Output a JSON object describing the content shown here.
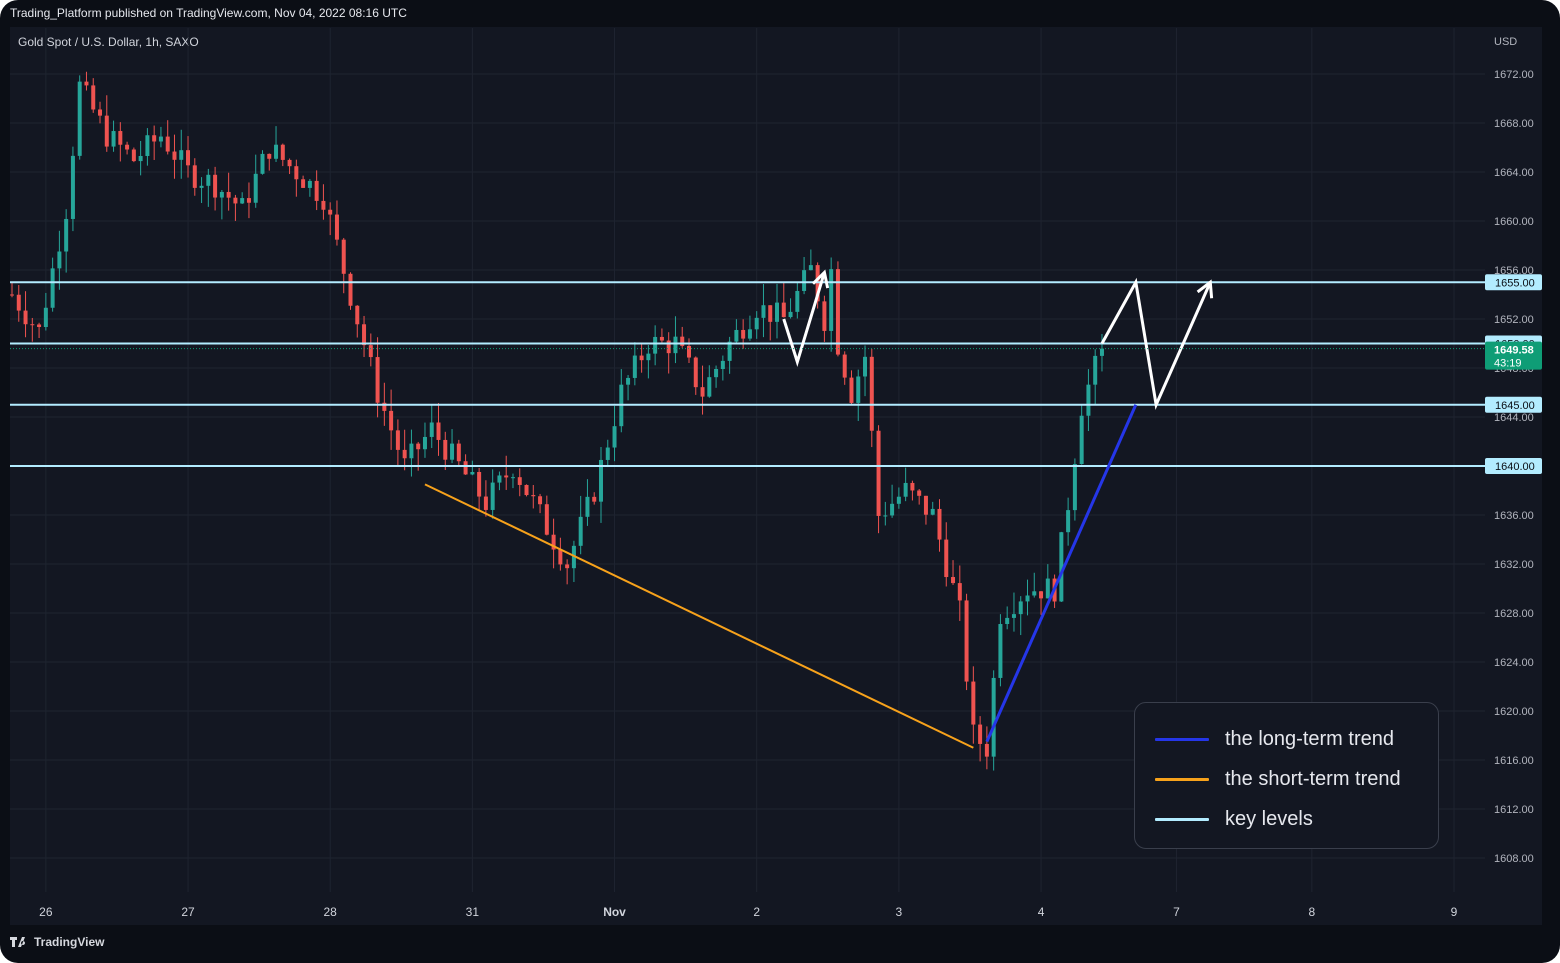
{
  "header": {
    "publisher_line": "Trading_Platform published on TradingView.com, Nov 04, 2022 08:16 UTC"
  },
  "symbol": {
    "label": "Gold Spot / U.S. Dollar, 1h, SAXO"
  },
  "footer": {
    "brand": "TradingView"
  },
  "colors": {
    "up": "#26a69a",
    "down": "#ef5350",
    "key_level": "#b3ecff",
    "long_trend": "#2536e8",
    "short_trend": "#f7a21b",
    "projection": "#ffffff",
    "current_price_tag": "#0f9d76"
  },
  "legend": {
    "items": [
      {
        "label": "the long-term trend",
        "color": "#2536e8"
      },
      {
        "label": "the short-term trend",
        "color": "#f7a21b"
      },
      {
        "label": "key levels",
        "color": "#b3ecff"
      }
    ]
  },
  "chart_data": {
    "type": "candlestick",
    "title": "",
    "currency": "USD",
    "ylim": [
      1605,
      1676
    ],
    "y_ticks": [
      "1672.00",
      "1668.00",
      "1664.00",
      "1660.00",
      "1656.00",
      "1652.00",
      "1648.00",
      "1644.00",
      "1640.00",
      "1636.00",
      "1632.00",
      "1628.00",
      "1624.00",
      "1620.00",
      "1616.00",
      "1612.00",
      "1608.00"
    ],
    "x_ticks": [
      "26",
      "27",
      "28",
      "31",
      "Nov",
      "2",
      "3",
      "4",
      "7",
      "8",
      "9"
    ],
    "grid": true,
    "key_levels": [
      {
        "value": 1655.0,
        "label": "1655.00"
      },
      {
        "value": 1650.0,
        "label": "1650.00"
      },
      {
        "value": 1645.0,
        "label": "1645.00"
      },
      {
        "value": 1640.0,
        "label": "1640.00"
      }
    ],
    "current_price": {
      "value": 1649.58,
      "label": "1649.58",
      "countdown": "43:19"
    },
    "price_path": [
      [
        0,
        1654
      ],
      [
        4,
        1651
      ],
      [
        8,
        1661
      ],
      [
        10,
        1671
      ],
      [
        14,
        1667
      ],
      [
        18,
        1665
      ],
      [
        22,
        1667
      ],
      [
        26,
        1664
      ],
      [
        30,
        1663
      ],
      [
        34,
        1661
      ],
      [
        38,
        1666
      ],
      [
        42,
        1664
      ],
      [
        46,
        1662
      ],
      [
        50,
        1654
      ],
      [
        54,
        1646
      ],
      [
        58,
        1640
      ],
      [
        62,
        1643
      ],
      [
        66,
        1640
      ],
      [
        70,
        1637
      ],
      [
        74,
        1640
      ],
      [
        78,
        1636
      ],
      [
        82,
        1632
      ],
      [
        86,
        1638
      ],
      [
        90,
        1646
      ],
      [
        94,
        1650
      ],
      [
        98,
        1650
      ],
      [
        102,
        1646
      ],
      [
        106,
        1650
      ],
      [
        110,
        1653
      ],
      [
        114,
        1652
      ],
      [
        118,
        1656
      ],
      [
        120,
        1652
      ],
      [
        121,
        1656
      ],
      [
        122,
        1650
      ],
      [
        124,
        1646
      ],
      [
        126,
        1649
      ],
      [
        128,
        1636
      ],
      [
        132,
        1638
      ],
      [
        136,
        1636
      ],
      [
        140,
        1628
      ],
      [
        142,
        1618
      ],
      [
        144,
        1617
      ],
      [
        146,
        1628
      ],
      [
        150,
        1630
      ],
      [
        154,
        1630
      ],
      [
        156,
        1637
      ],
      [
        158,
        1645
      ],
      [
        160,
        1648
      ],
      [
        161,
        1649.58
      ]
    ],
    "trend_lines": [
      {
        "name": "the short-term trend",
        "from": [
          61,
          1638.5
        ],
        "to": [
          142,
          1617
        ]
      },
      {
        "name": "the long-term trend",
        "from": [
          144,
          1617.5
        ],
        "to": [
          166,
          1645
        ]
      }
    ],
    "projection_arrows": [
      {
        "points": [
          [
            114,
            1652
          ],
          [
            116,
            1648.5
          ],
          [
            120,
            1655.8
          ]
        ]
      },
      {
        "points": [
          [
            161,
            1650
          ],
          [
            166,
            1655
          ],
          [
            169,
            1645
          ],
          [
            177,
            1655
          ]
        ]
      }
    ]
  }
}
